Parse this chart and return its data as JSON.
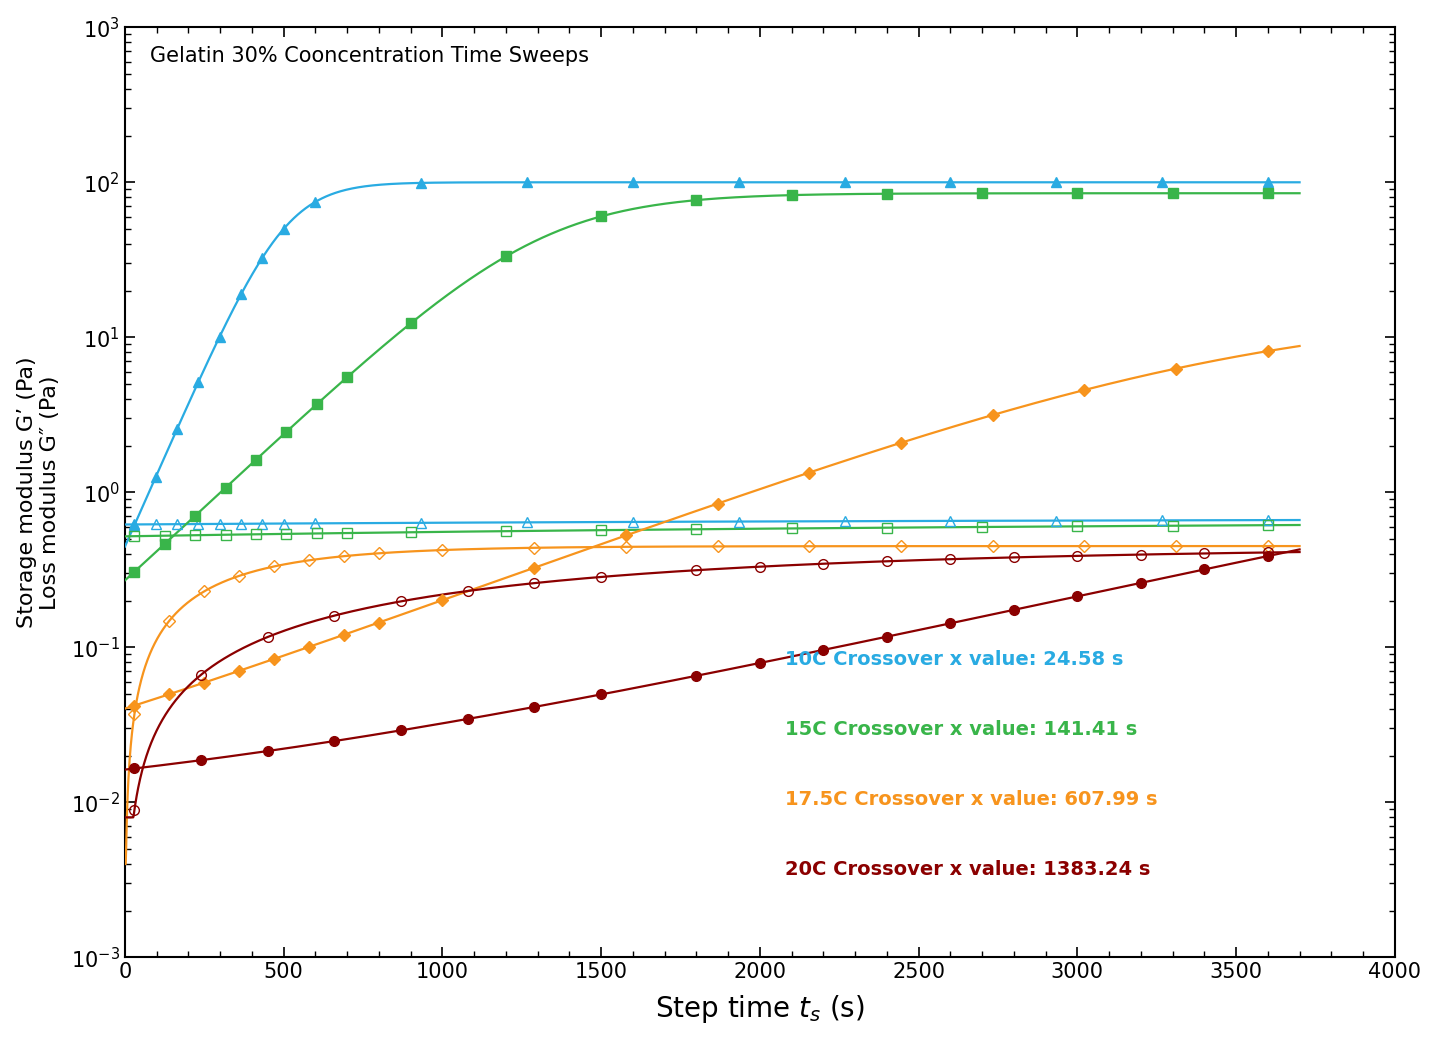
{
  "title": "Gelatin 30% Cooncentration Time Sweeps",
  "xlabel": "Step time $t_s$ (s)",
  "ylabel_left": "Storage modulus G’ (Pa)\nLoss modulus G″ (Pa)",
  "xlim": [
    0,
    4000
  ],
  "colors": {
    "10C": "#29ABE2",
    "15C": "#39B54A",
    "175C": "#F7941D",
    "20C": "#8B0000"
  },
  "crossover_labels": [
    {
      "text": "10C Crossover x value: 24.58 s",
      "color": "#29ABE2"
    },
    {
      "text": "15C Crossover x value: 141.41 s",
      "color": "#39B54A"
    },
    {
      "text": "17.5C Crossover x value: 607.99 s",
      "color": "#F7941D"
    },
    {
      "text": "20C Crossover x value: 1383.24 s",
      "color": "#8B0000"
    }
  ],
  "10C_crossover": 24.58,
  "15C_crossover": 141.41,
  "175C_crossover": 607.99,
  "20C_crossover": 1383.24
}
